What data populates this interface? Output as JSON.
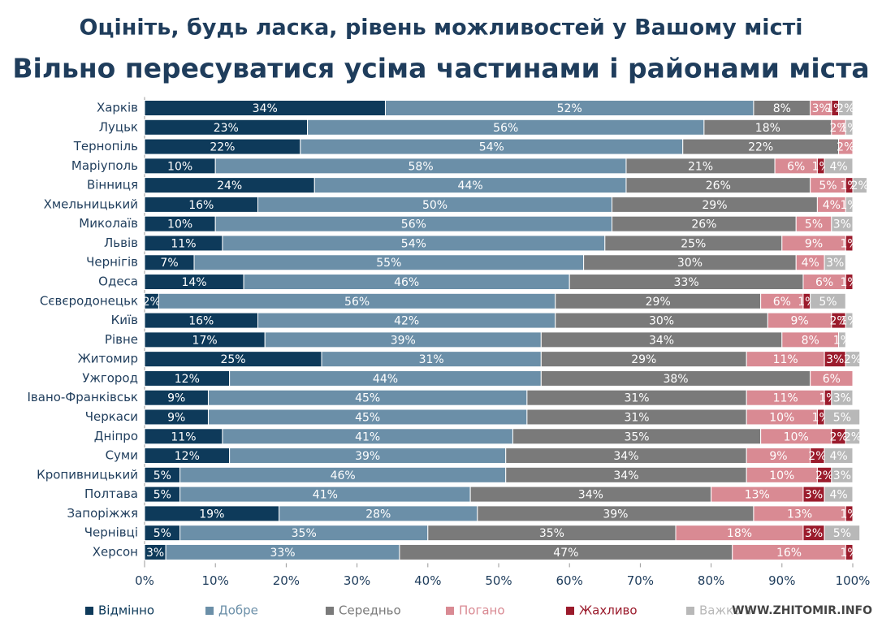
{
  "chart_data": {
    "type": "bar",
    "orientation": "horizontal",
    "stacked": true,
    "title": "Оцініть, будь ласка, рівень можливостей у Вашому місті",
    "subtitle": "Вільно пересуватися усіма частинами і районами міста",
    "categories": [
      "Харків",
      "Луцьк",
      "Тернопіль",
      "Маріуполь",
      "Вінниця",
      "Хмельницький",
      "Миколаїв",
      "Львів",
      "Чернігів",
      "Одеса",
      "Сєвєродонецьк",
      "Київ",
      "Рівне",
      "Житомир",
      "Ужгород",
      "Івано-Франківськ",
      "Черкаси",
      "Дніпро",
      "Суми",
      "Кропивницький",
      "Полтава",
      "Запоріжжя",
      "Чернівці",
      "Херсон"
    ],
    "series": [
      {
        "name": "Відмінно",
        "color": "#0e3a5a",
        "values": [
          34,
          23,
          22,
          10,
          24,
          16,
          10,
          11,
          7,
          14,
          2,
          16,
          17,
          25,
          12,
          9,
          9,
          11,
          12,
          5,
          5,
          19,
          5,
          3
        ],
        "value_labels": [
          "34%",
          "23%",
          "22%",
          "10%",
          "24%",
          "16%",
          "10%",
          "11%",
          "7%",
          "14%",
          "2%",
          "16%",
          "17%",
          "25%",
          "12%",
          "9%",
          "9%",
          "11%",
          "12%",
          "5%",
          "5%",
          "19%",
          "5%",
          "3%"
        ]
      },
      {
        "name": "Добре",
        "color": "#6b8fa8",
        "values": [
          52,
          56,
          54,
          58,
          44,
          50,
          56,
          54,
          55,
          46,
          56,
          42,
          39,
          31,
          44,
          45,
          45,
          41,
          39,
          46,
          41,
          28,
          35,
          33
        ],
        "value_labels": [
          "52%",
          "56%",
          "54%",
          "58%",
          "44%",
          "50%",
          "56%",
          "54%",
          "55%",
          "46%",
          "56%",
          "42%",
          "39%",
          "31%",
          "44%",
          "45%",
          "45%",
          "41%",
          "39%",
          "46%",
          "41%",
          "28%",
          "35%",
          "33%"
        ]
      },
      {
        "name": "Середньо",
        "color": "#7a7a7a",
        "values": [
          8,
          18,
          22,
          21,
          26,
          29,
          26,
          25,
          30,
          33,
          29,
          30,
          34,
          29,
          38,
          31,
          31,
          35,
          34,
          34,
          34,
          39,
          35,
          47
        ],
        "value_labels": [
          "8%",
          "18%",
          "22%",
          "21%",
          "26%",
          "29%",
          "26%",
          "25%",
          "30%",
          "33%",
          "29%",
          "30%",
          "34%",
          "29%",
          "38%",
          "31%",
          "31%",
          "35%",
          "34%",
          "34%",
          "34%",
          "39%",
          "35%",
          "47%"
        ]
      },
      {
        "name": "Погано",
        "color": "#d98a93",
        "values": [
          3,
          2,
          2,
          6,
          5,
          4,
          5,
          9,
          4,
          6,
          6,
          9,
          8,
          11,
          6,
          11,
          10,
          10,
          9,
          10,
          13,
          13,
          18,
          16
        ],
        "value_labels": [
          "3%",
          "2%",
          "2%",
          "6%",
          "5%",
          "4%",
          "5%",
          "9%",
          "4%",
          "6%",
          "6%",
          "9%",
          "8%",
          "11%",
          "6%",
          "11%",
          "10%",
          "10%",
          "9%",
          "10%",
          "13%",
          "13%",
          "18%",
          "16%"
        ]
      },
      {
        "name": "Жахливо",
        "color": "#9b1b2c",
        "values": [
          1,
          null,
          null,
          1,
          1,
          null,
          null,
          1,
          null,
          1,
          1,
          2,
          null,
          3,
          null,
          1,
          1,
          2,
          2,
          2,
          3,
          1,
          3,
          1
        ],
        "value_labels": [
          "1%",
          null,
          null,
          "1%",
          "1%",
          null,
          null,
          "1%",
          null,
          "1%",
          "1%",
          "2%",
          null,
          "3%",
          null,
          "1%",
          "1%",
          "2%",
          "2%",
          "2%",
          "3%",
          "1%",
          "3%",
          "1%"
        ]
      },
      {
        "name": "Важко відповісти",
        "color": "#b8b8b8",
        "values": [
          2,
          1,
          null,
          4,
          2,
          1,
          3,
          null,
          3,
          null,
          5,
          1,
          1,
          2,
          null,
          3,
          5,
          2,
          4,
          3,
          4,
          null,
          5,
          null
        ],
        "value_labels": [
          "2%",
          "1%",
          null,
          "4%",
          "2%",
          "1%",
          "3%",
          null,
          "3%",
          null,
          "5%",
          "1%",
          "1%",
          "2%",
          null,
          "3%",
          "5%",
          "2%",
          "4%",
          "3%",
          "4%",
          null,
          "5%",
          null
        ]
      }
    ],
    "xlim": [
      0,
      100
    ],
    "xticks": [
      {
        "value": 0,
        "label": "0%"
      },
      {
        "value": 10,
        "label": "10%"
      },
      {
        "value": 20,
        "label": "20%"
      },
      {
        "value": 30,
        "label": "30%"
      },
      {
        "value": 40,
        "label": "40%"
      },
      {
        "value": 50,
        "label": "50%"
      },
      {
        "value": 60,
        "label": "60%"
      },
      {
        "value": 70,
        "label": "70%"
      },
      {
        "value": 80,
        "label": "80%"
      },
      {
        "value": 90,
        "label": "90%"
      },
      {
        "value": 100,
        "label": "100%"
      }
    ],
    "legend": "bottom",
    "watermark": "WWW.ZHITOMIR.INFO"
  }
}
